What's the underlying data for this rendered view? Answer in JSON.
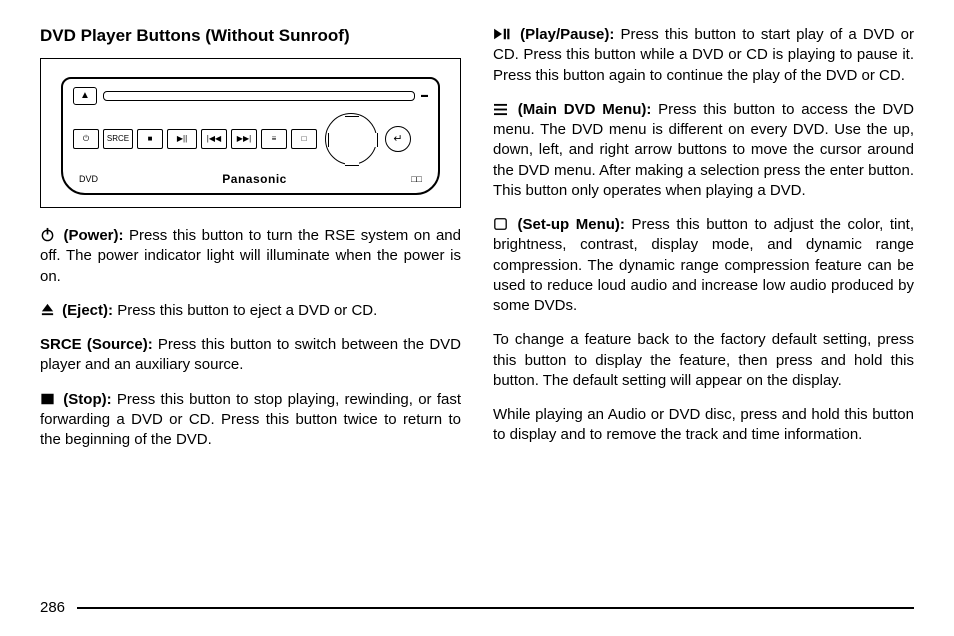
{
  "title": "DVD Player Buttons (Without Sunroof)",
  "diagram": {
    "brand_left": "DVD",
    "brand_center": "Panasonic",
    "brand_right": "□□",
    "srce": "SRCE"
  },
  "left": [
    {
      "icon": "power",
      "label": "(Power):",
      "text": "Press this button to turn the RSE system on and off. The power indicator light will illuminate when the power is on."
    },
    {
      "icon": "eject",
      "label": "(Eject):",
      "text": "Press this button to eject a DVD or CD."
    },
    {
      "icon": "",
      "label": "SRCE (Source):",
      "text": "Press this button to switch between the DVD player and an auxiliary source."
    },
    {
      "icon": "stop",
      "label": "(Stop):",
      "text": "Press this button to stop playing, rewinding, or fast forwarding a DVD or CD. Press this button twice to return to the beginning of the DVD."
    }
  ],
  "right": [
    {
      "icon": "play",
      "label": "(Play/Pause):",
      "text": "Press this button to start play of a DVD or CD. Press this button while a DVD or CD is playing to pause it. Press this button again to continue the play of the DVD or CD."
    },
    {
      "icon": "menu",
      "label": "(Main DVD Menu):",
      "text": "Press this button to access the DVD menu. The DVD menu is different on every DVD. Use the up, down, left, and right arrow buttons to move the cursor around the DVD menu. After making a selection press the enter button. This button only operates when playing a DVD."
    },
    {
      "icon": "setup",
      "label": "(Set-up Menu):",
      "text": "Press this button to adjust the color, tint, brightness, contrast, display mode, and dynamic range compression. The dynamic range compression feature can be used to reduce loud audio and increase low audio produced by some DVDs."
    },
    {
      "icon": "",
      "label": "",
      "text": "To change a feature back to the factory default setting, press this button to display the feature, then press and hold this button. The default setting will appear on the display."
    },
    {
      "icon": "",
      "label": "",
      "text": "While playing an Audio or DVD disc, press and hold this button to display and to remove the track and time information."
    }
  ],
  "page": "286"
}
